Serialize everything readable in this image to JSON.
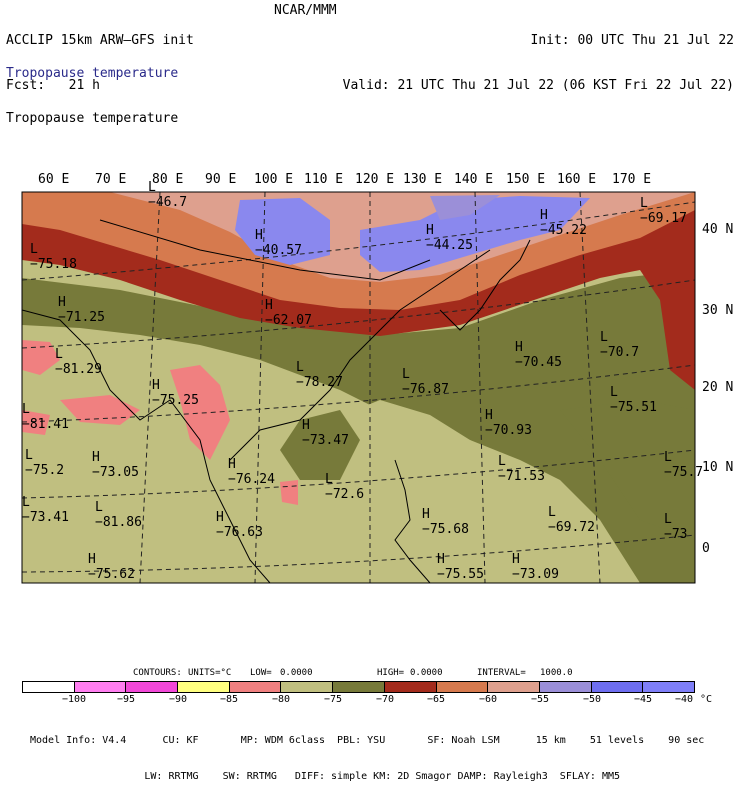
{
  "header": {
    "line1_left": "ACCLIP 15km ARW–GFS init",
    "line2_left": "Fcst:   21 h",
    "center": "NCAR/MMM",
    "line1_right": "Init: 00 UTC Thu 21 Jul 22",
    "line2_right": "Valid: 21 UTC Thu 21 Jul 22 (06 KST Fri 22 Jul 22)",
    "var_title_1": "Tropopause temperature",
    "var_title_2": "Tropopause temperature"
  },
  "map": {
    "lon_labels": [
      "60 E",
      "70 E",
      "80 E",
      "90 E",
      "100 E",
      "110 E",
      "120 E",
      "130 E",
      "140 E",
      "150 E",
      "160 E",
      "170 E"
    ],
    "lat_labels": [
      "40 N",
      "30 N",
      "20 N",
      "10 N",
      "0"
    ],
    "highs": [
      {
        "mark": "H",
        "value": "−40.57"
      },
      {
        "mark": "H",
        "value": "−44.25"
      },
      {
        "mark": "H",
        "value": "−45.22"
      },
      {
        "mark": "H",
        "value": "−62.07"
      },
      {
        "mark": "H",
        "value": "−71.25"
      },
      {
        "mark": "H",
        "value": "−75.25"
      },
      {
        "mark": "H",
        "value": "−76.24"
      },
      {
        "mark": "H",
        "value": "−76.63"
      },
      {
        "mark": "H",
        "value": "−70.45"
      },
      {
        "mark": "H",
        "value": "−70.93"
      },
      {
        "mark": "H",
        "value": "−73.47"
      },
      {
        "mark": "H",
        "value": "−75.68"
      },
      {
        "mark": "H",
        "value": "−75.55"
      },
      {
        "mark": "H",
        "value": "−73.09"
      },
      {
        "mark": "H",
        "value": "−73.05"
      },
      {
        "mark": "H",
        "value": "−75.62"
      }
    ],
    "lows": [
      {
        "mark": "L",
        "value": "−46.7"
      },
      {
        "mark": "L",
        "value": "−69.17"
      },
      {
        "mark": "L",
        "value": "−75.18"
      },
      {
        "mark": "L",
        "value": "−81.29"
      },
      {
        "mark": "L",
        "value": "−78.27"
      },
      {
        "mark": "L",
        "value": "−76.87"
      },
      {
        "mark": "L",
        "value": "−70.7"
      },
      {
        "mark": "L",
        "value": "−75.51"
      },
      {
        "mark": "L",
        "value": "−81.41"
      },
      {
        "mark": "L",
        "value": "−75.2"
      },
      {
        "mark": "L",
        "value": "−73.41"
      },
      {
        "mark": "L",
        "value": "−81.86"
      },
      {
        "mark": "L",
        "value": "−72.6"
      },
      {
        "mark": "L",
        "value": "−71.53"
      },
      {
        "mark": "L",
        "value": "−69.72"
      },
      {
        "mark": "L",
        "value": "−75.7"
      },
      {
        "mark": "L",
        "value": "−73"
      }
    ],
    "fill_colors": {
      "pink": "#f08080",
      "khaki": "#c0bf80",
      "olive": "#777a3a",
      "darkred": "#a32b1c",
      "orange": "#d67a4e",
      "salmon": "#dea08e",
      "lavender": "#9b8fd8",
      "violet": "#8a88ee"
    }
  },
  "contour_info": {
    "contours": "CONTOURS:",
    "units": "UNITS=°C",
    "low": "LOW=",
    "low_val": "0.0000",
    "high": "HIGH=",
    "high_val": "0.0000",
    "interval": "INTERVAL=",
    "interval_val": "1000.0"
  },
  "colorbar": {
    "colors": [
      "#ffffff",
      "#ff7ef0",
      "#f248d8",
      "#ffff80",
      "#f08080",
      "#c0bf80",
      "#777a3a",
      "#a32b1c",
      "#d67a4e",
      "#dea08e",
      "#9b8fd8",
      "#6e6ef0",
      "#7f7ff8"
    ],
    "labels": [
      "−100",
      "−95",
      "−90",
      "−85",
      "−80",
      "−75",
      "−70",
      "−65",
      "−60",
      "−55",
      "−50",
      "−45",
      "−40",
      "°C"
    ]
  },
  "model_info": {
    "line1": "Model Info: V4.4      CU: KF       MP: WDM 6class  PBL: YSU       SF: Noah LSM      15 km    51 levels    90 sec",
    "line2": "                   LW: RRTMG    SW: RRTMG   DIFF: simple KM: 2D Smagor DAMP: Rayleigh3  SFLAY: MM5"
  }
}
